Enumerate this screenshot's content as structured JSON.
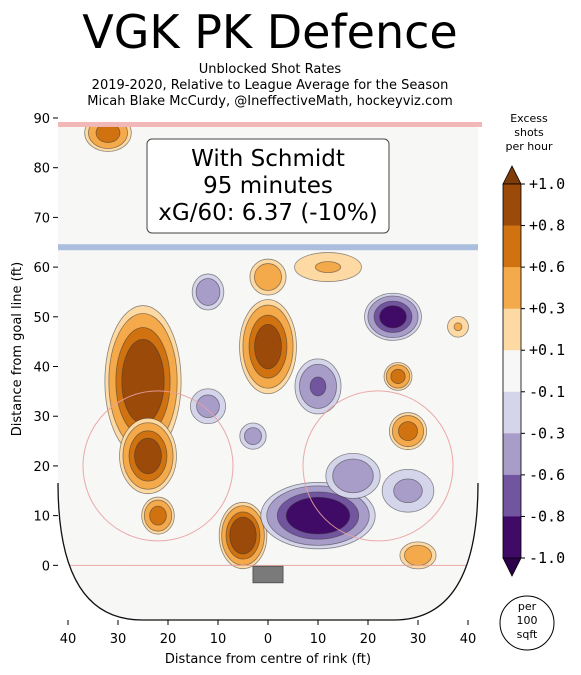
{
  "header": {
    "title": "VGK PK Defence",
    "subtitle_lines": [
      "Unblocked Shot Rates",
      "2019-2020, Relative to League Average for the Season",
      "Micah Blake McCurdy, @IneffectiveMath, hockeyviz.com"
    ]
  },
  "info_box": {
    "lines": [
      "With Schmidt",
      "95 minutes",
      "xG/60: 6.37 (-10%)"
    ]
  },
  "chart_data": {
    "type": "heatmap",
    "xlabel": "Distance from centre of rink (ft)",
    "ylabel": "Distance from goal line (ft)",
    "xlim": [
      -42,
      42
    ],
    "ylim": [
      -11,
      90
    ],
    "x_ticks": [
      -40,
      -30,
      -20,
      -10,
      0,
      10,
      20,
      30,
      40
    ],
    "x_tick_labels": [
      "40",
      "30",
      "20",
      "10",
      "0",
      "10",
      "20",
      "30",
      "40"
    ],
    "y_ticks": [
      0,
      10,
      20,
      30,
      40,
      50,
      60,
      70,
      80,
      90
    ],
    "y_tick_labels": [
      "0",
      "10",
      "20",
      "30",
      "40",
      "50",
      "60",
      "70",
      "80",
      "90"
    ],
    "colorbar": {
      "label_lines": [
        "Excess",
        "shots",
        "per hour"
      ],
      "tick_labels": [
        "+1.0",
        "+0.8",
        "+0.6",
        "+0.3",
        "+0.1",
        "-0.1",
        "-0.3",
        "-0.6",
        "-0.8",
        "-1.0"
      ],
      "bins": [
        {
          "low": 0.8,
          "high": 1.0,
          "color": "#9b4a0a"
        },
        {
          "low": 0.6,
          "high": 0.8,
          "color": "#d0720f"
        },
        {
          "low": 0.3,
          "high": 0.6,
          "color": "#f4a94a"
        },
        {
          "low": 0.1,
          "high": 0.3,
          "color": "#fdd9a4"
        },
        {
          "low": -0.1,
          "high": 0.1,
          "color": "#f7f7f7"
        },
        {
          "low": -0.3,
          "high": -0.1,
          "color": "#d4d4ea"
        },
        {
          "low": -0.6,
          "high": -0.3,
          "color": "#a89cc9"
        },
        {
          "low": -0.8,
          "high": -0.6,
          "color": "#71559f"
        },
        {
          "low": -1.0,
          "high": -0.8,
          "color": "#3f0b66"
        }
      ],
      "over_color": "#7f3b08",
      "under_color": "#2d004b"
    },
    "area_badge_lines": [
      "per",
      "100",
      "sqft"
    ],
    "blobs": [
      {
        "x": -25,
        "y": 37,
        "rx": 8,
        "ry": 16,
        "peak": 1.0
      },
      {
        "x": -24,
        "y": 22,
        "rx": 6,
        "ry": 8,
        "peak": 0.9
      },
      {
        "x": -32,
        "y": 87,
        "rx": 5,
        "ry": 4,
        "peak": 0.7
      },
      {
        "x": -22,
        "y": 10,
        "rx": 3.5,
        "ry": 4,
        "peak": 0.7
      },
      {
        "x": -5,
        "y": 6,
        "rx": 5,
        "ry": 7,
        "peak": 1.0
      },
      {
        "x": 0,
        "y": 44,
        "rx": 6,
        "ry": 10,
        "peak": 0.9
      },
      {
        "x": 0,
        "y": 58,
        "rx": 4,
        "ry": 4,
        "peak": 0.5
      },
      {
        "x": 12,
        "y": 60,
        "rx": 8,
        "ry": 3.5,
        "peak": 0.3
      },
      {
        "x": 26,
        "y": 38,
        "rx": 3,
        "ry": 3,
        "peak": 0.7
      },
      {
        "x": 28,
        "y": 27,
        "rx": 4,
        "ry": 4,
        "peak": 0.7
      },
      {
        "x": 30,
        "y": 2,
        "rx": 4,
        "ry": 3,
        "peak": 0.5
      },
      {
        "x": 38,
        "y": 48,
        "rx": 2.5,
        "ry": 2.5,
        "peak": 0.3
      },
      {
        "x": 10,
        "y": 10,
        "rx": 12,
        "ry": 7,
        "peak": -1.0
      },
      {
        "x": 25,
        "y": 50,
        "rx": 6,
        "ry": 5,
        "peak": -0.9
      },
      {
        "x": 10,
        "y": 36,
        "rx": 5,
        "ry": 6,
        "peak": -0.6
      },
      {
        "x": -12,
        "y": 55,
        "rx": 3.5,
        "ry": 4,
        "peak": -0.5
      },
      {
        "x": -12,
        "y": 32,
        "rx": 4,
        "ry": 4,
        "peak": -0.4
      },
      {
        "x": -3,
        "y": 26,
        "rx": 3,
        "ry": 3,
        "peak": -0.4
      },
      {
        "x": 17,
        "y": 18,
        "rx": 6,
        "ry": 5,
        "peak": -0.5
      },
      {
        "x": 28,
        "y": 15,
        "rx": 6,
        "ry": 5,
        "peak": -0.35
      }
    ]
  }
}
